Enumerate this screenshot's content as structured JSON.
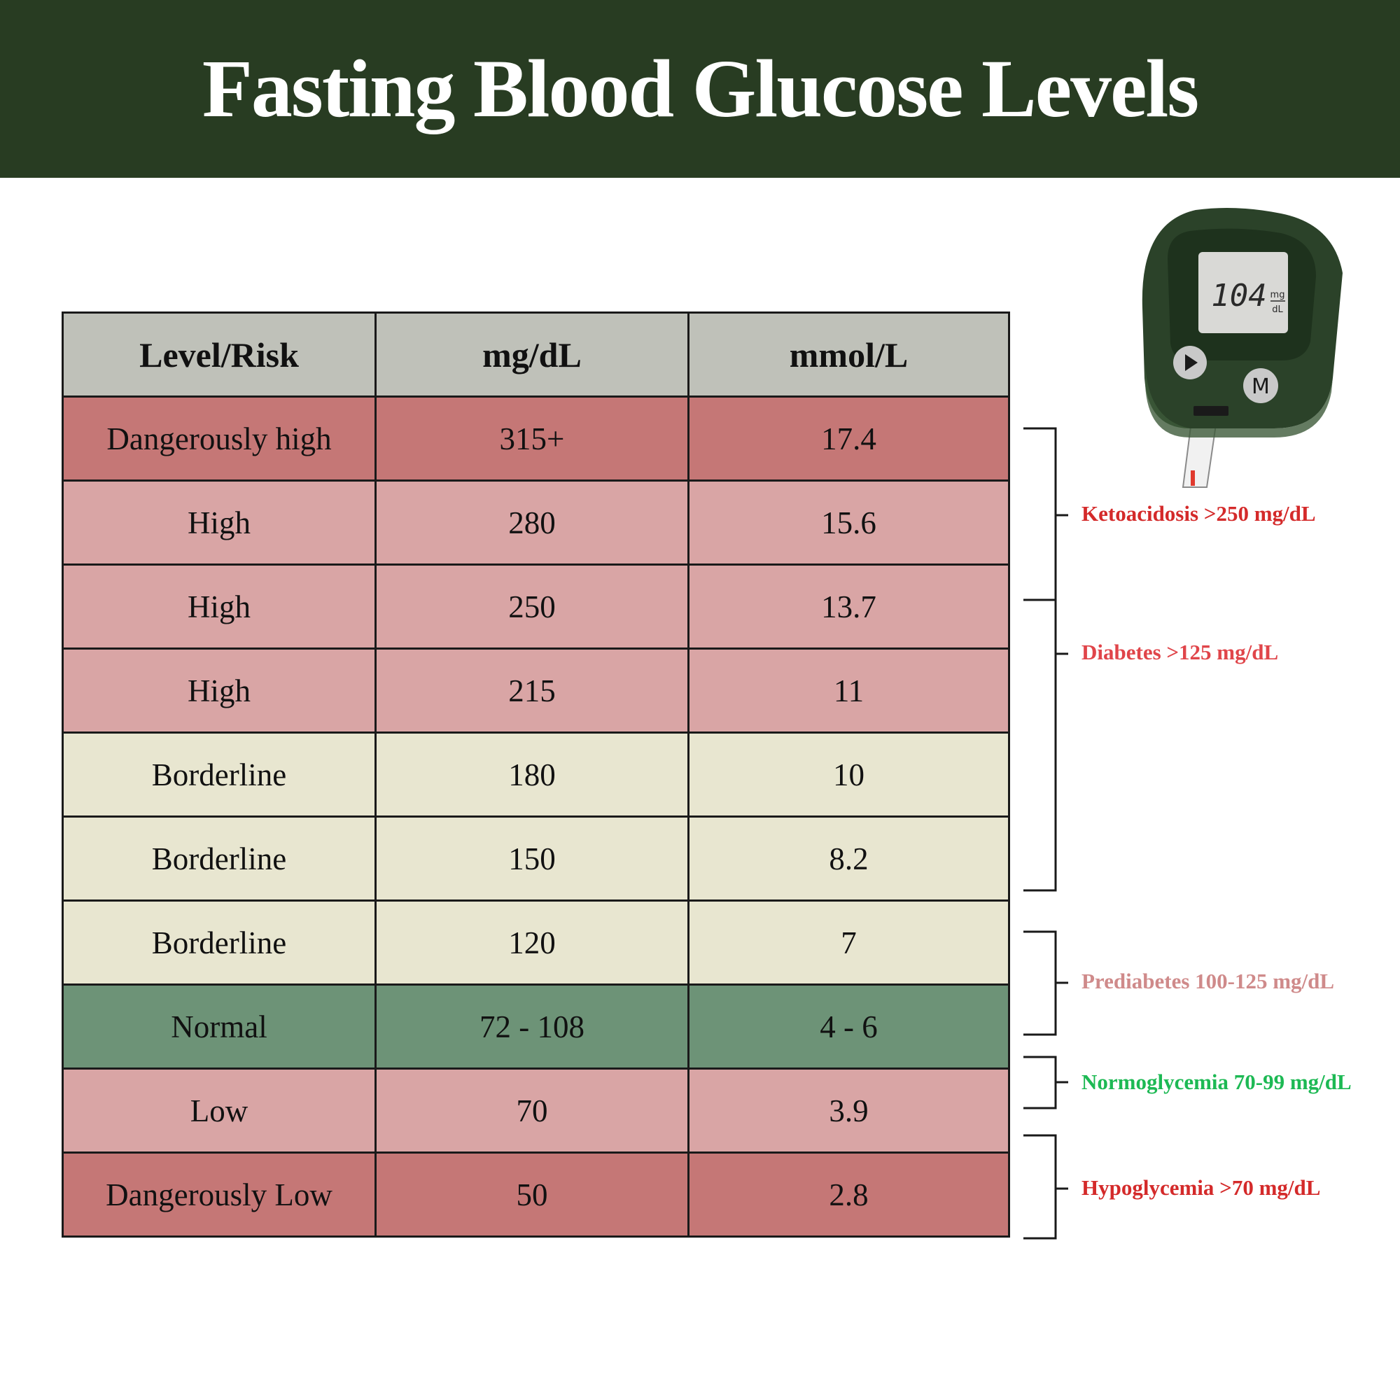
{
  "title": "Fasting Blood Glucose Levels",
  "colors": {
    "banner": "#283c22",
    "header_row": "#bfc1b9",
    "dangerous": "#c57776",
    "high": "#d9a5a5",
    "borderline": "#e8e6d0",
    "normal": "#6d9377",
    "low": "#d9a5a5"
  },
  "chart_data": {
    "type": "table",
    "columns": [
      "Level/Risk",
      "mg/dL",
      "mmol/L"
    ],
    "rows": [
      {
        "level": "Dangerously high",
        "mgdl": "315+",
        "mmol": "17.4",
        "color": "#c57776"
      },
      {
        "level": "High",
        "mgdl": "280",
        "mmol": "15.6",
        "color": "#d9a5a5"
      },
      {
        "level": "High",
        "mgdl": "250",
        "mmol": "13.7",
        "color": "#d9a5a5"
      },
      {
        "level": "High",
        "mgdl": "215",
        "mmol": "11",
        "color": "#d9a5a5"
      },
      {
        "level": "Borderline",
        "mgdl": "180",
        "mmol": "10",
        "color": "#e8e6d0"
      },
      {
        "level": "Borderline",
        "mgdl": "150",
        "mmol": "8.2",
        "color": "#e8e6d0"
      },
      {
        "level": "Borderline",
        "mgdl": "120",
        "mmol": "7",
        "color": "#e8e6d0"
      },
      {
        "level": "Normal",
        "mgdl": "72 - 108",
        "mmol": "4 - 6",
        "color": "#6d9377"
      },
      {
        "level": "Low",
        "mgdl": "70",
        "mmol": "3.9",
        "color": "#d9a5a5"
      },
      {
        "level": "Dangerously Low",
        "mgdl": "50",
        "mmol": "2.8",
        "color": "#c57776"
      }
    ],
    "annotations": [
      {
        "label": "Ketoacidosis >250 mg/dL",
        "color": "#d42a2a"
      },
      {
        "label": "Diabetes >125 mg/dL",
        "color": "#e0454a"
      },
      {
        "label": "Prediabetes 100-125 mg/dL",
        "color": "#cf8a8a"
      },
      {
        "label": "Normoglycemia 70-99 mg/dL",
        "color": "#1db954"
      },
      {
        "label": "Hypoglycemia >70 mg/dL",
        "color": "#d42a2a"
      }
    ]
  },
  "meter": {
    "reading": "104",
    "unit_top": "mg",
    "unit_bottom": "dL",
    "menu_button": "M",
    "body_color": "#2b4229",
    "screen_color": "#d9d9d6",
    "strip_mark_color": "#e03a2e"
  }
}
